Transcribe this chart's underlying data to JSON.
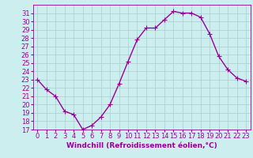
{
  "x": [
    0,
    1,
    2,
    3,
    4,
    5,
    6,
    7,
    8,
    9,
    10,
    11,
    12,
    13,
    14,
    15,
    16,
    17,
    18,
    19,
    20,
    21,
    22,
    23
  ],
  "y": [
    23.0,
    21.8,
    21.0,
    19.2,
    18.8,
    17.0,
    17.5,
    18.5,
    20.0,
    22.5,
    25.2,
    27.8,
    29.2,
    29.2,
    30.2,
    31.2,
    31.0,
    31.0,
    30.5,
    28.5,
    25.8,
    24.2,
    23.2,
    22.8
  ],
  "line_color": "#990099",
  "marker": "+",
  "markersize": 4,
  "linewidth": 1.0,
  "bg_color": "#cceeee",
  "grid_color": "#aacccc",
  "tick_color": "#990099",
  "label_color": "#990099",
  "xlabel": "Windchill (Refroidissement éolien,°C)",
  "ylim": [
    17,
    32
  ],
  "xlim": [
    -0.5,
    23.5
  ],
  "yticks": [
    17,
    18,
    19,
    20,
    21,
    22,
    23,
    24,
    25,
    26,
    27,
    28,
    29,
    30,
    31
  ],
  "xticks": [
    0,
    1,
    2,
    3,
    4,
    5,
    6,
    7,
    8,
    9,
    10,
    11,
    12,
    13,
    14,
    15,
    16,
    17,
    18,
    19,
    20,
    21,
    22,
    23
  ],
  "xlabel_fontsize": 6.5,
  "tick_fontsize": 6,
  "fig_bg": "#cceeee"
}
